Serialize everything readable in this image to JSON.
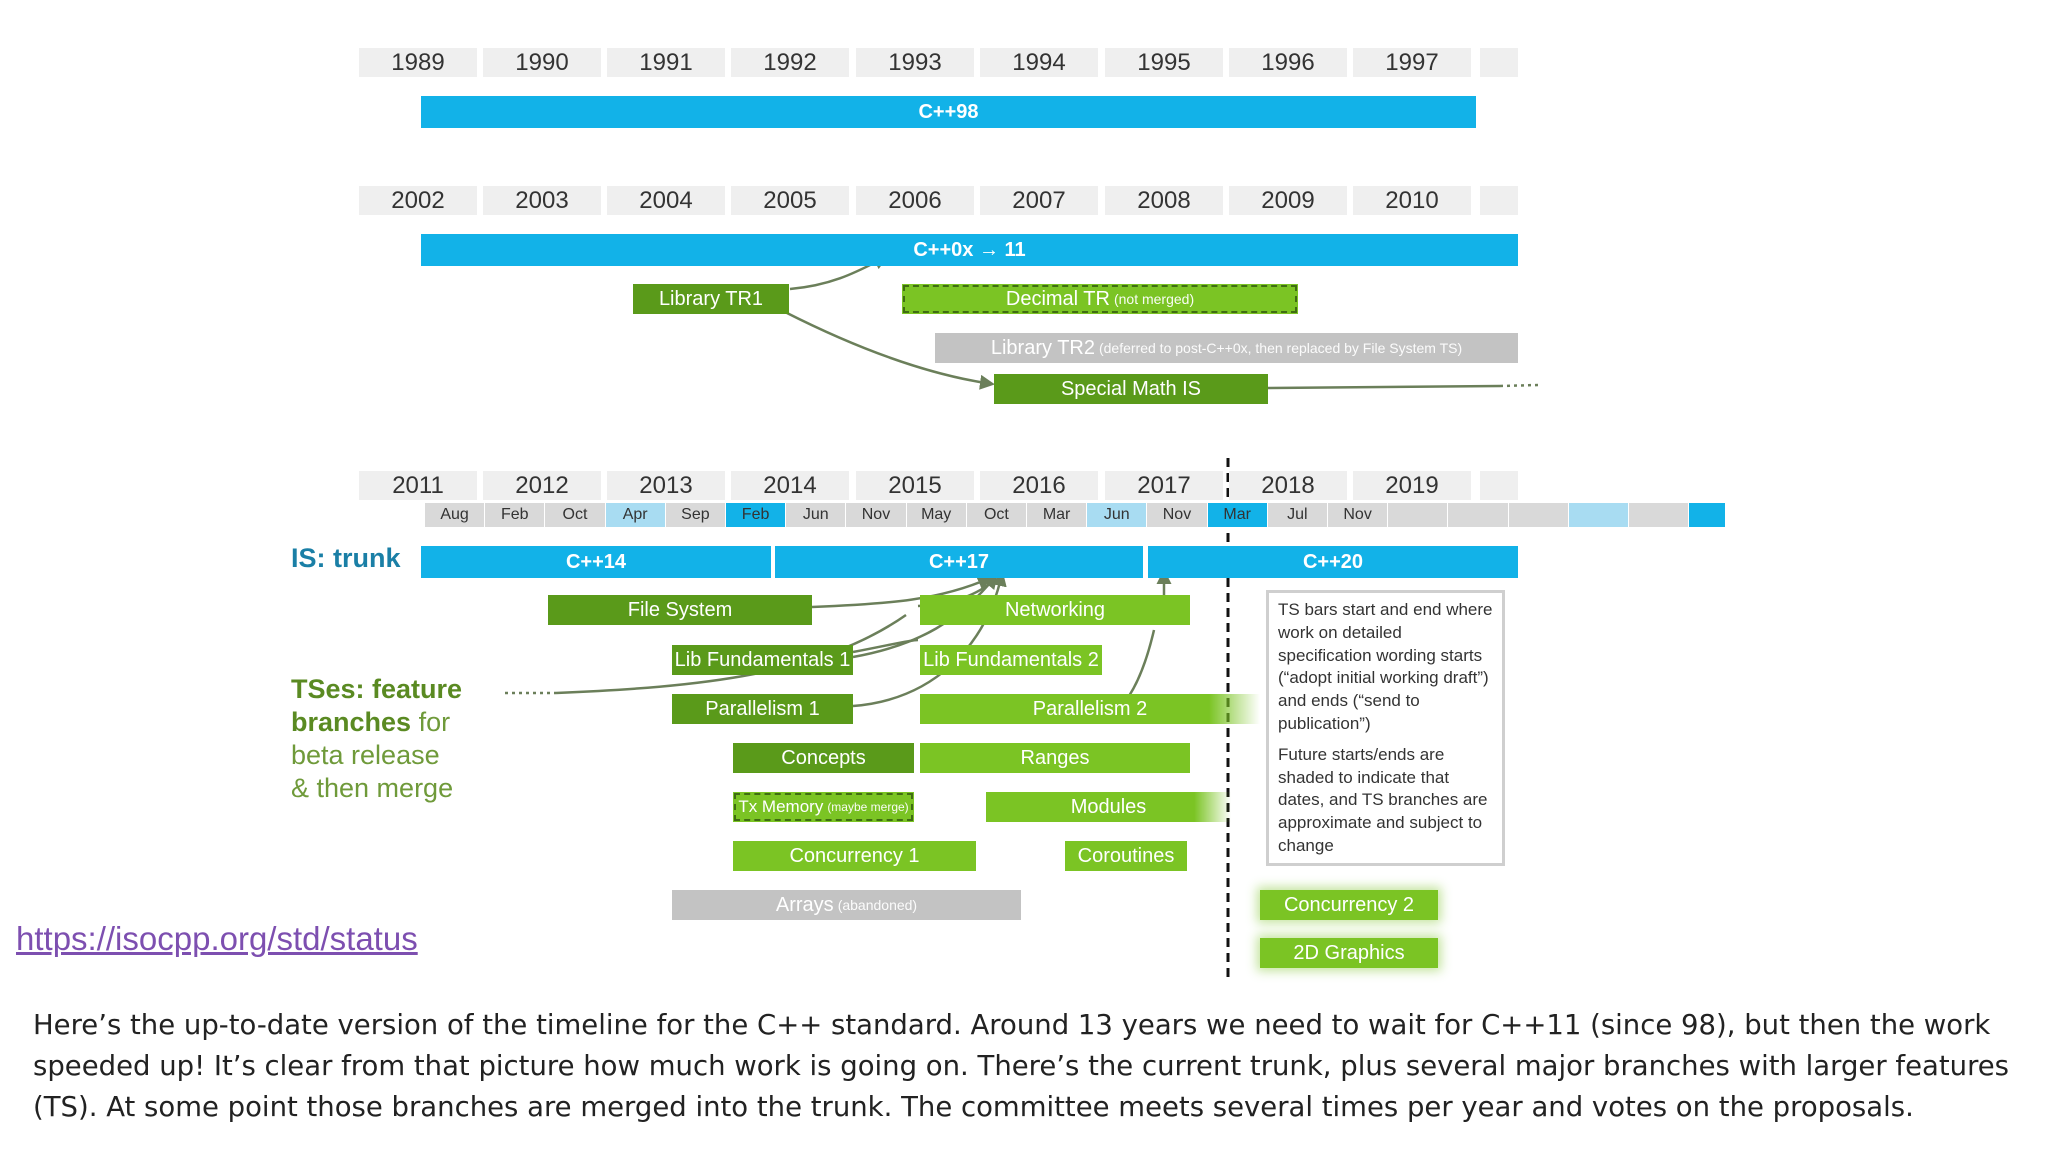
{
  "diagram": {
    "row1": {
      "years": [
        "1989",
        "1990",
        "1991",
        "1992",
        "1993",
        "1994",
        "1995",
        "1996",
        "1997"
      ],
      "trunk": "C++98"
    },
    "row2": {
      "years": [
        "2002",
        "2003",
        "2004",
        "2005",
        "2006",
        "2007",
        "2008",
        "2009",
        "2010"
      ],
      "trunk": "C++0x → 11",
      "library_tr1": "Library TR1",
      "decimal_tr": "Decimal TR",
      "decimal_tr_note": "(not merged)",
      "library_tr2": "Library TR2",
      "library_tr2_note": "(deferred to post-C++0x, then replaced by File System TS)",
      "special_math": "Special Math IS"
    },
    "row3": {
      "years": [
        "2011",
        "2012",
        "2013",
        "2014",
        "2015",
        "2016",
        "2017",
        "2018",
        "2019"
      ],
      "months": [
        {
          "label": "Aug",
          "color": "#d9d9d9"
        },
        {
          "label": "Feb",
          "color": "#d9d9d9"
        },
        {
          "label": "Oct",
          "color": "#d9d9d9"
        },
        {
          "label": "Apr",
          "color": "#a8dcf2"
        },
        {
          "label": "Sep",
          "color": "#d9d9d9"
        },
        {
          "label": "Feb",
          "color": "#12b2e8"
        },
        {
          "label": "Jun",
          "color": "#d9d9d9"
        },
        {
          "label": "Nov",
          "color": "#d9d9d9"
        },
        {
          "label": "May",
          "color": "#d9d9d9"
        },
        {
          "label": "Oct",
          "color": "#d9d9d9"
        },
        {
          "label": "Mar",
          "color": "#d9d9d9"
        },
        {
          "label": "Jun",
          "color": "#a8dcf2"
        },
        {
          "label": "Nov",
          "color": "#d9d9d9"
        },
        {
          "label": "Mar",
          "color": "#12b2e8"
        },
        {
          "label": "Jul",
          "color": "#d9d9d9"
        },
        {
          "label": "Nov",
          "color": "#d9d9d9"
        },
        {
          "label": "",
          "color": "#d9d9d9"
        },
        {
          "label": "",
          "color": "#d9d9d9"
        },
        {
          "label": "",
          "color": "#d9d9d9"
        },
        {
          "label": "",
          "color": "#a8dcf2"
        },
        {
          "label": "",
          "color": "#d9d9d9"
        },
        {
          "label": "",
          "color": "#12b2e8"
        }
      ],
      "trunk_label": "IS: trunk",
      "cpp14": "C++14",
      "cpp17": "C++17",
      "cpp20": "C++20",
      "ts_label_bold": "TSes: feature branches",
      "ts_label_rest1": "for",
      "ts_label_rest2": "beta release",
      "ts_label_rest3": "& then merge",
      "file_system": "File System",
      "networking": "Networking",
      "lib_fund_1": "Lib Fundamentals 1",
      "lib_fund_2": "Lib Fundamentals 2",
      "parallelism_1": "Parallelism 1",
      "parallelism_2": "Parallelism 2",
      "concepts": "Concepts",
      "ranges": "Ranges",
      "tx_memory": "Tx Memory",
      "tx_memory_note": "(maybe merge)",
      "modules": "Modules",
      "concurrency_1": "Concurrency 1",
      "coroutines": "Coroutines",
      "arrays": "Arrays",
      "arrays_note": "(abandoned)",
      "concurrency_2": "Concurrency 2",
      "graphics_2d": "2D Graphics",
      "note_p1": "TS bars start and end where work on detailed specification wording starts (“adopt initial working draft”) and ends (“send to publication”)",
      "note_p2": "Future starts/ends are shaded to indicate that dates, and TS branches are approximate and subject to change"
    },
    "colors": {
      "trunk_blue": "#12b2e8",
      "ts_dark_green": "#5a9a1a",
      "ts_light_green": "#7bc424",
      "abandoned_gray": "#c3c3c3",
      "link_purple": "#7d4fb0"
    }
  },
  "link": "https://isocpp.org/std/status",
  "caption": "Here’s the up-to-date version of the timeline for the C++ standard. Around 13 years we need to wait for C++11 (since 98), but then the work speeded up! It’s clear from that picture how much work is going on. There’s the current trunk, plus several major branches with larger features (TS). At some point those branches are merged into the trunk. The committee meets several times per year and votes on the proposals."
}
